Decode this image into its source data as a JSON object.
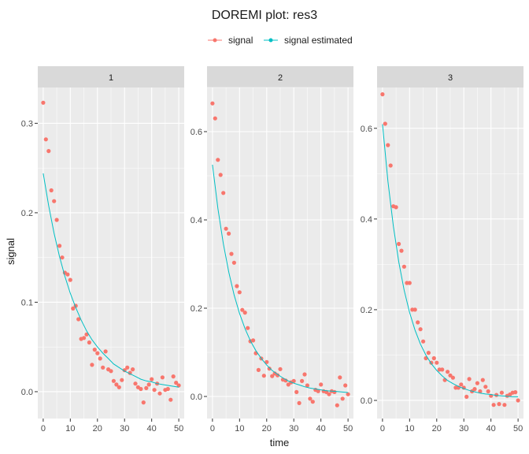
{
  "chart_data": {
    "type": "scatter",
    "title": "DOREMI plot: res3",
    "xlabel": "time",
    "ylabel": "signal",
    "grid": true,
    "legend_position": "top",
    "legend": [
      {
        "name": "signal",
        "color": "#F8766D",
        "marker": "point+line"
      },
      {
        "name": "signal estimated",
        "color": "#00BFC4",
        "marker": "point+line"
      }
    ],
    "xlim": [
      -2,
      52
    ],
    "x_ticks": [
      0,
      10,
      20,
      30,
      40,
      50
    ],
    "x_tick_labels": [
      "0",
      "10",
      "20",
      "30",
      "40",
      "50"
    ],
    "panels": [
      {
        "strip": "1",
        "ylim": [
          -0.03,
          0.34
        ],
        "y_ticks": [
          0.0,
          0.1,
          0.2,
          0.3
        ],
        "y_tick_labels": [
          "0.0",
          "0.1",
          "0.2",
          "0.3"
        ],
        "series": [
          {
            "name": "signal",
            "type": "scatter",
            "x": [
              0,
              1,
              2,
              3,
              4,
              5,
              6,
              7,
              8,
              9,
              10,
              11,
              12,
              13,
              14,
              15,
              16,
              17,
              18,
              19,
              20,
              21,
              22,
              23,
              24,
              25,
              26,
              27,
              28,
              29,
              30,
              31,
              32,
              33,
              34,
              35,
              36,
              37,
              38,
              39,
              40,
              41,
              42,
              43,
              44,
              45,
              46,
              47,
              48,
              49,
              50
            ],
            "y": [
              0.323,
              0.282,
              0.269,
              0.225,
              0.213,
              0.192,
              0.163,
              0.15,
              0.133,
              0.131,
              0.125,
              0.093,
              0.096,
              0.081,
              0.059,
              0.06,
              0.064,
              0.055,
              0.03,
              0.047,
              0.043,
              0.037,
              0.027,
              0.045,
              0.025,
              0.023,
              0.012,
              0.008,
              0.005,
              0.013,
              0.024,
              0.027,
              0.021,
              0.025,
              0.009,
              0.005,
              0.003,
              -0.012,
              0.004,
              0.008,
              0.014,
              0.002,
              0.009,
              -0.002,
              0.016,
              0.002,
              0.003,
              -0.009,
              0.017,
              0.01,
              0.007
            ]
          },
          {
            "name": "signal estimated",
            "type": "line",
            "x": [
              0,
              2,
              4,
              6,
              8,
              10,
              12,
              14,
              16,
              18,
              20,
              22,
              24,
              26,
              28,
              30,
              32,
              34,
              36,
              38,
              40,
              42,
              44,
              46,
              48,
              50
            ],
            "y": [
              0.244,
              0.208,
              0.177,
              0.151,
              0.129,
              0.11,
              0.094,
              0.08,
              0.068,
              0.058,
              0.05,
              0.043,
              0.037,
              0.031,
              0.027,
              0.023,
              0.02,
              0.017,
              0.014,
              0.012,
              0.011,
              0.009,
              0.008,
              0.007,
              0.006,
              0.005
            ]
          }
        ]
      },
      {
        "strip": "2",
        "ylim": [
          -0.05,
          0.7
        ],
        "y_ticks": [
          0.0,
          0.2,
          0.4,
          0.6
        ],
        "y_tick_labels": [
          "0.0",
          "0.2",
          "0.4",
          "0.6"
        ],
        "series": [
          {
            "name": "signal",
            "type": "scatter",
            "x": [
              0,
              1,
              2,
              3,
              4,
              5,
              6,
              7,
              8,
              9,
              10,
              11,
              12,
              13,
              14,
              15,
              16,
              17,
              18,
              19,
              20,
              21,
              22,
              23,
              24,
              25,
              26,
              27,
              28,
              29,
              30,
              31,
              32,
              33,
              34,
              35,
              36,
              37,
              38,
              39,
              40,
              41,
              42,
              43,
              44,
              45,
              46,
              47,
              48,
              49,
              50
            ],
            "y": [
              0.664,
              0.63,
              0.536,
              0.502,
              0.461,
              0.38,
              0.369,
              0.323,
              0.303,
              0.25,
              0.236,
              0.196,
              0.19,
              0.155,
              0.125,
              0.127,
              0.098,
              0.06,
              0.086,
              0.047,
              0.078,
              0.063,
              0.046,
              0.052,
              0.048,
              0.062,
              0.038,
              0.036,
              0.027,
              0.032,
              0.035,
              0.01,
              -0.015,
              0.035,
              0.05,
              0.025,
              -0.005,
              -0.012,
              0.015,
              0.012,
              0.027,
              0.012,
              0.01,
              0.005,
              0.012,
              0.01,
              -0.02,
              0.043,
              -0.005,
              0.025,
              0.005
            ]
          },
          {
            "name": "signal estimated",
            "type": "line",
            "x": [
              0,
              2,
              4,
              6,
              8,
              10,
              12,
              14,
              16,
              18,
              20,
              22,
              24,
              26,
              28,
              30,
              32,
              34,
              36,
              38,
              40,
              42,
              44,
              46,
              48,
              50
            ],
            "y": [
              0.525,
              0.426,
              0.346,
              0.282,
              0.23,
              0.188,
              0.154,
              0.126,
              0.104,
              0.086,
              0.071,
              0.059,
              0.05,
              0.042,
              0.035,
              0.03,
              0.026,
              0.022,
              0.019,
              0.017,
              0.015,
              0.013,
              0.012,
              0.011,
              0.01,
              0.009
            ]
          }
        ]
      },
      {
        "strip": "3",
        "ylim": [
          -0.04,
          0.69
        ],
        "y_ticks": [
          0.0,
          0.2,
          0.4,
          0.6
        ],
        "y_tick_labels": [
          "0.0",
          "0.2",
          "0.4",
          "0.6"
        ],
        "series": [
          {
            "name": "signal",
            "type": "scatter",
            "x": [
              0,
              1,
              2,
              3,
              4,
              5,
              6,
              7,
              8,
              9,
              10,
              11,
              12,
              13,
              14,
              15,
              16,
              17,
              18,
              19,
              20,
              21,
              22,
              23,
              24,
              25,
              26,
              27,
              28,
              29,
              30,
              31,
              32,
              33,
              34,
              35,
              36,
              37,
              38,
              39,
              40,
              41,
              42,
              43,
              44,
              45,
              46,
              47,
              48,
              49,
              50
            ],
            "y": [
              0.675,
              0.61,
              0.563,
              0.518,
              0.428,
              0.426,
              0.345,
              0.33,
              0.295,
              0.259,
              0.259,
              0.2,
              0.2,
              0.172,
              0.157,
              0.13,
              0.093,
              0.105,
              0.083,
              0.093,
              0.083,
              0.068,
              0.068,
              0.045,
              0.063,
              0.055,
              0.05,
              0.028,
              0.028,
              0.035,
              0.028,
              0.008,
              0.047,
              0.02,
              0.025,
              0.038,
              0.02,
              0.045,
              0.03,
              0.02,
              0.01,
              -0.01,
              0.012,
              -0.008,
              0.017,
              -0.01,
              0.01,
              0.013,
              0.017,
              0.018,
              0.0
            ]
          },
          {
            "name": "signal estimated",
            "type": "line",
            "x": [
              0,
              2,
              4,
              6,
              8,
              10,
              12,
              14,
              16,
              18,
              20,
              22,
              24,
              26,
              28,
              30,
              32,
              34,
              36,
              38,
              40,
              42,
              44,
              46,
              48,
              50
            ],
            "y": [
              0.609,
              0.483,
              0.384,
              0.305,
              0.243,
              0.194,
              0.155,
              0.124,
              0.1,
              0.081,
              0.066,
              0.054,
              0.044,
              0.037,
              0.031,
              0.026,
              0.022,
              0.019,
              0.016,
              0.014,
              0.013,
              0.011,
              0.01,
              0.009,
              0.008,
              0.008
            ]
          }
        ]
      }
    ]
  }
}
